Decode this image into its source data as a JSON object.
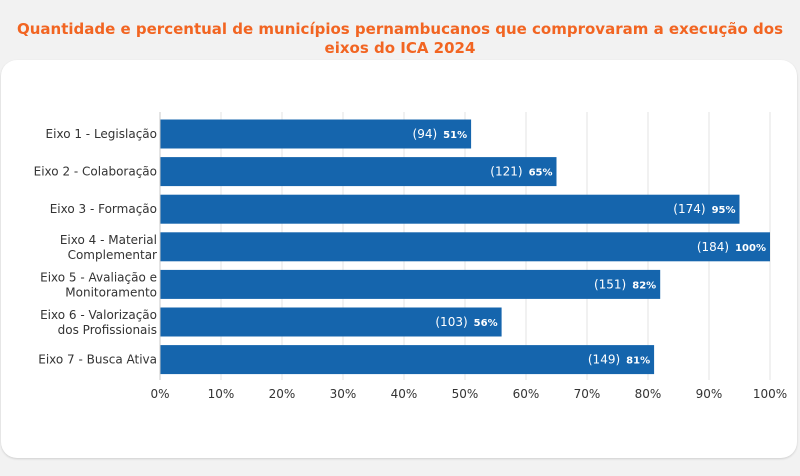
{
  "title": "Quantidade e percentual de municípios pernambucanos que comprovaram a execução dos eixos do ICA 2024",
  "chart_data": {
    "type": "bar",
    "orientation": "horizontal",
    "title": "Quantidade e percentual de municípios pernambucanos que comprovaram a execução dos eixos do ICA 2024",
    "categories": [
      [
        "Eixo 1 - Legislação"
      ],
      [
        "Eixo 2 - Colaboração"
      ],
      [
        "Eixo 3 - Formação"
      ],
      [
        "Eixo 4 - Material",
        "Complementar"
      ],
      [
        "Eixo 5 - Avaliação e",
        "Monitoramento"
      ],
      [
        "Eixo 6 - Valorização",
        "dos Profissionais"
      ],
      [
        "Eixo 7 - Busca Ativa"
      ]
    ],
    "values": [
      51,
      65,
      95,
      100,
      82,
      56,
      81
    ],
    "counts": [
      "(94)",
      "(121)",
      "(174)",
      "(184)",
      "(151)",
      "(103)",
      "(149)"
    ],
    "value_labels": [
      "51%",
      "65%",
      "95%",
      "100%",
      "82%",
      "56%",
      "81%"
    ],
    "xlim": [
      0,
      100
    ],
    "xticks": [
      "0%",
      "10%",
      "20%",
      "30%",
      "40%",
      "50%",
      "60%",
      "70%",
      "80%",
      "90%",
      "100%"
    ],
    "grid": true,
    "bar_color": "#1565ad",
    "title_color": "#f26522"
  }
}
